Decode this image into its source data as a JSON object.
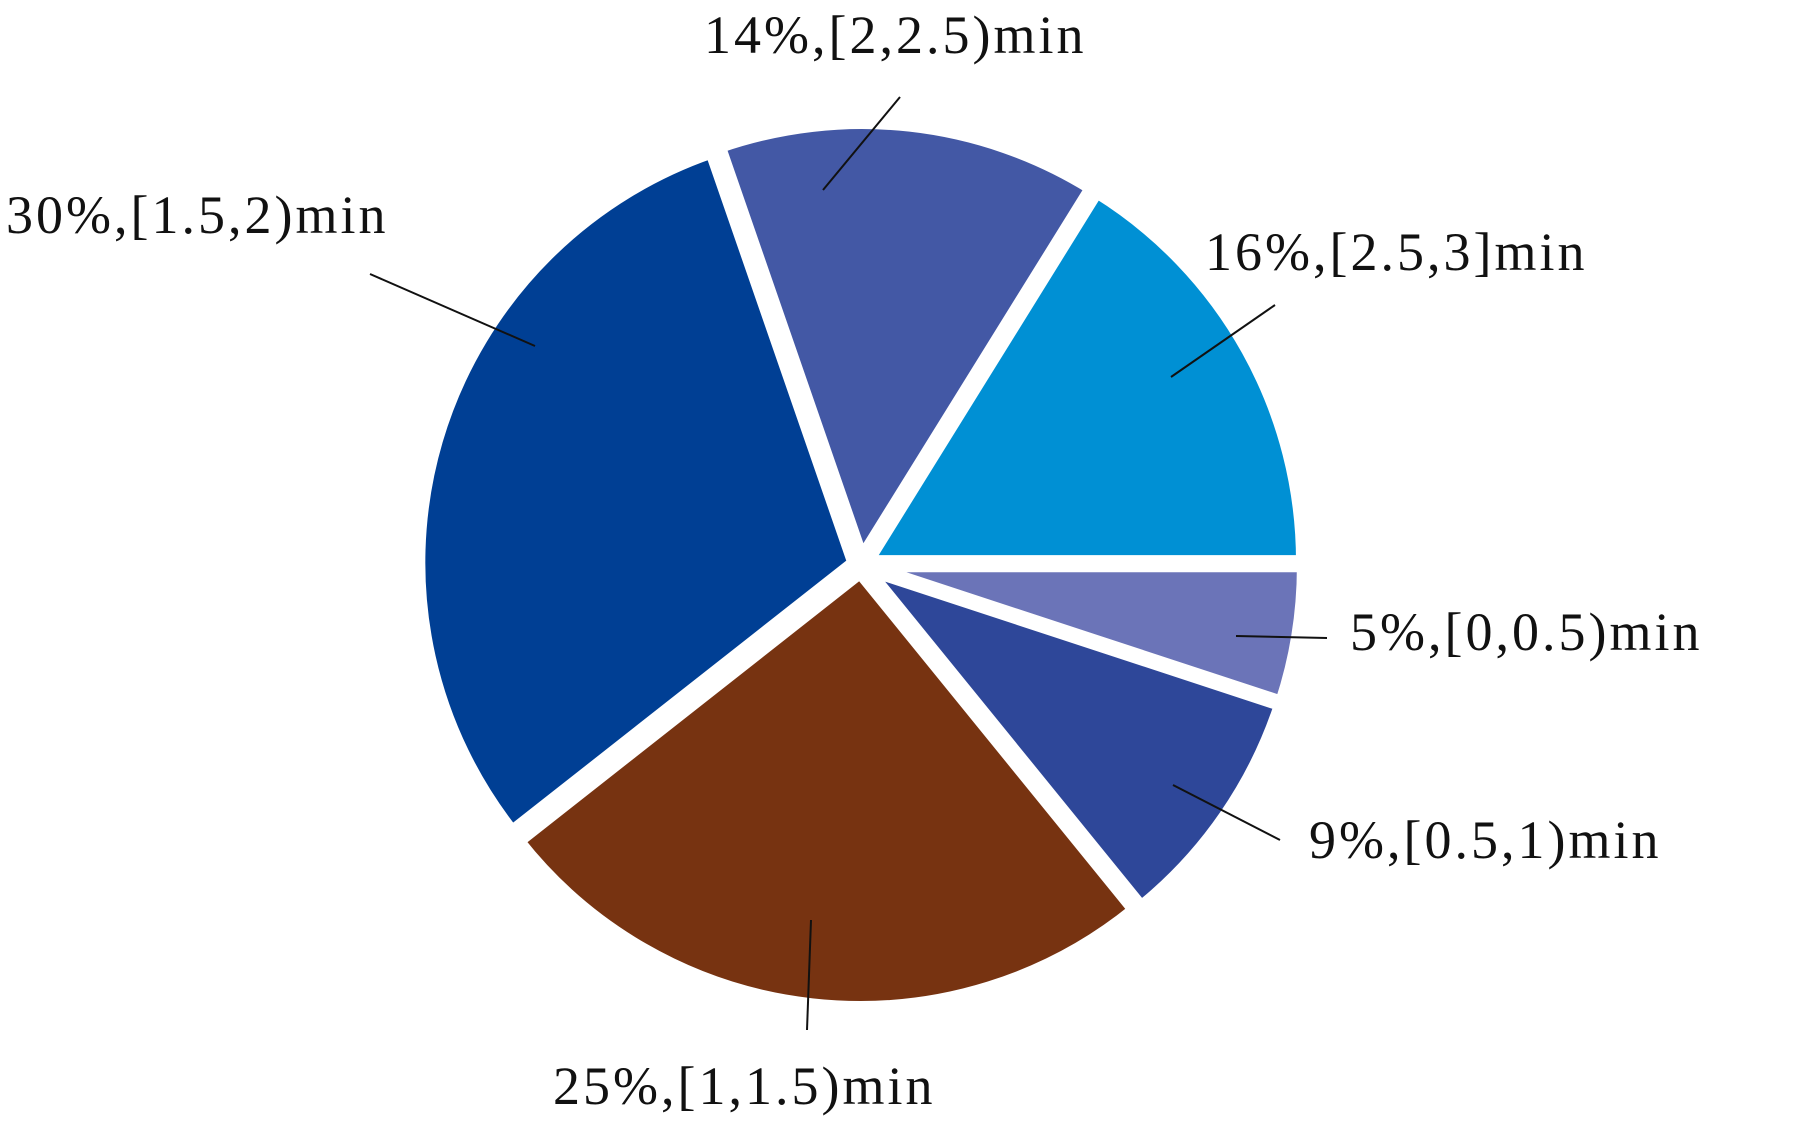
{
  "chart_data": {
    "type": "pie",
    "categories": [
      "[0,0.5)min",
      "[0.5,1)min",
      "[1,1.5)min",
      "[1.5,2)min",
      "[2,2.5)min",
      "[2.5,3]min"
    ],
    "values": [
      5,
      9,
      25,
      30,
      14,
      16
    ],
    "value_labels": [
      "5%",
      "9%",
      "25%",
      "30%",
      "14%",
      "16%"
    ],
    "label_separator": ",",
    "colors": [
      "#6b74b8",
      "#2e4799",
      "#773311",
      "#003f94",
      "#4358a5",
      "#0090d4"
    ],
    "start_angle": 0,
    "direction": "clockwise"
  }
}
